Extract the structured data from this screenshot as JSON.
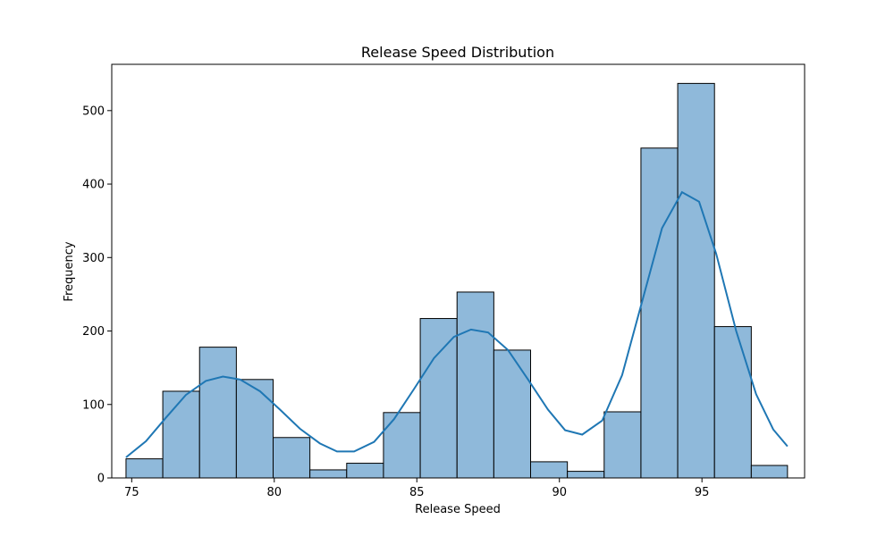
{
  "chart_data": {
    "type": "bar",
    "title": "Release Speed Distribution",
    "xlabel": "Release Speed",
    "ylabel": "Frequency",
    "xlim": [
      74.3,
      98.6
    ],
    "ylim": [
      0,
      563
    ],
    "xticks": [
      75,
      80,
      85,
      90,
      95
    ],
    "yticks": [
      0,
      100,
      200,
      300,
      400,
      500
    ],
    "grid": false,
    "bin_edges": [
      74.8,
      76.09,
      77.38,
      78.67,
      79.96,
      81.25,
      82.54,
      83.83,
      85.12,
      86.41,
      87.7,
      88.99,
      90.28,
      91.57,
      92.86,
      94.15,
      95.44,
      96.73,
      98.0
    ],
    "counts": [
      26,
      118,
      178,
      134,
      55,
      11,
      20,
      89,
      217,
      253,
      174,
      22,
      9,
      90,
      449,
      537,
      206,
      17
    ],
    "kde": {
      "x": [
        74.8,
        75.5,
        76.2,
        76.9,
        77.6,
        78.2,
        78.8,
        79.5,
        80.2,
        80.9,
        81.6,
        82.2,
        82.8,
        83.5,
        84.2,
        84.9,
        85.6,
        86.3,
        86.9,
        87.5,
        88.2,
        88.9,
        89.6,
        90.2,
        90.8,
        91.5,
        92.2,
        92.9,
        93.6,
        94.3,
        94.9,
        95.5,
        96.2,
        96.9,
        97.5,
        98.0
      ],
      "y": [
        28,
        50,
        82,
        113,
        132,
        138,
        134,
        118,
        93,
        67,
        47,
        36,
        36,
        49,
        80,
        121,
        163,
        192,
        202,
        198,
        174,
        134,
        93,
        65,
        59,
        78,
        140,
        240,
        340,
        389,
        376,
        305,
        200,
        114,
        66,
        43
      ]
    },
    "bar_color": "#8fb9da",
    "bar_edge_color": "#000000",
    "line_color": "#1f77b4"
  }
}
